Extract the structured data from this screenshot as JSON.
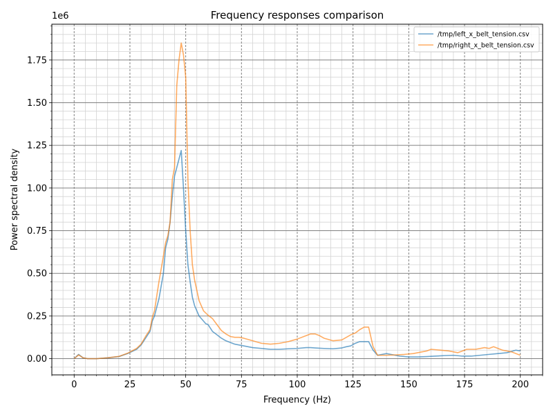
{
  "chart_data": {
    "type": "line",
    "title": "Frequency responses comparison",
    "xlabel": "Frequency (Hz)",
    "ylabel": "Power spectral density",
    "y_offset_label": "1e6",
    "xlim": [
      -10,
      210
    ],
    "ylim": [
      -0.095,
      1.96
    ],
    "x_ticks": [
      0,
      25,
      50,
      75,
      100,
      125,
      150,
      175,
      200
    ],
    "y_ticks": [
      0.0,
      0.25,
      0.5,
      0.75,
      1.0,
      1.25,
      1.5,
      1.75
    ],
    "y_tick_labels": [
      "0.00",
      "0.25",
      "0.50",
      "0.75",
      "1.00",
      "1.25",
      "1.50",
      "1.75"
    ],
    "grid": true,
    "legend_position": "top-right",
    "series": [
      {
        "name": "/tmp/left_x_belt_tension.csv",
        "color": "#1f77b4",
        "x": [
          0,
          2,
          4,
          6,
          10,
          15,
          20,
          24,
          28,
          30,
          32,
          34,
          35,
          36,
          38,
          40,
          41,
          42,
          43,
          44,
          45,
          46,
          47,
          48,
          49,
          50,
          51,
          52,
          53,
          54,
          56,
          58,
          59,
          60,
          62,
          64,
          66,
          68,
          70,
          72,
          74,
          76,
          80,
          84,
          88,
          92,
          96,
          100,
          104,
          106,
          108,
          112,
          116,
          120,
          122,
          124,
          126,
          128,
          130,
          132,
          134,
          136,
          138,
          140,
          142,
          144,
          146,
          150,
          154,
          158,
          162,
          166,
          170,
          174,
          178,
          182,
          186,
          190,
          194,
          198,
          200
        ],
        "y": [
          0.0,
          0.025,
          0.005,
          0.0,
          0.0,
          0.005,
          0.012,
          0.03,
          0.055,
          0.08,
          0.12,
          0.16,
          0.22,
          0.25,
          0.35,
          0.5,
          0.65,
          0.7,
          0.8,
          0.95,
          1.07,
          1.12,
          1.17,
          1.22,
          1.0,
          0.75,
          0.55,
          0.45,
          0.36,
          0.31,
          0.25,
          0.22,
          0.205,
          0.2,
          0.16,
          0.14,
          0.12,
          0.105,
          0.095,
          0.085,
          0.08,
          0.075,
          0.065,
          0.06,
          0.055,
          0.055,
          0.058,
          0.06,
          0.065,
          0.065,
          0.063,
          0.06,
          0.058,
          0.063,
          0.07,
          0.075,
          0.09,
          0.1,
          0.1,
          0.1,
          0.05,
          0.02,
          0.025,
          0.03,
          0.025,
          0.02,
          0.015,
          0.01,
          0.01,
          0.012,
          0.015,
          0.018,
          0.02,
          0.015,
          0.015,
          0.02,
          0.025,
          0.03,
          0.035,
          0.05,
          0.045
        ]
      },
      {
        "name": "/tmp/right_x_belt_tension.csv",
        "color": "#ff7f0e",
        "x": [
          0,
          2,
          4,
          6,
          10,
          15,
          20,
          24,
          28,
          30,
          32,
          34,
          35,
          36,
          38,
          40,
          41,
          42,
          43,
          44,
          45,
          46,
          47,
          48,
          49,
          50,
          51,
          52,
          53,
          54,
          56,
          58,
          60,
          62,
          64,
          66,
          68,
          70,
          72,
          74,
          76,
          80,
          84,
          88,
          92,
          96,
          100,
          104,
          106,
          108,
          110,
          112,
          116,
          120,
          124,
          126,
          128,
          130,
          132,
          134,
          136,
          140,
          144,
          148,
          152,
          156,
          158,
          160,
          164,
          168,
          172,
          174,
          176,
          180,
          184,
          186,
          188,
          192,
          196,
          200
        ],
        "y": [
          0.0,
          0.022,
          0.005,
          0.0,
          0.0,
          0.005,
          0.013,
          0.032,
          0.06,
          0.085,
          0.13,
          0.17,
          0.24,
          0.28,
          0.45,
          0.6,
          0.68,
          0.72,
          0.8,
          1.05,
          1.12,
          1.6,
          1.75,
          1.85,
          1.78,
          1.65,
          1.05,
          0.75,
          0.55,
          0.46,
          0.34,
          0.28,
          0.255,
          0.235,
          0.2,
          0.165,
          0.145,
          0.13,
          0.125,
          0.125,
          0.12,
          0.105,
          0.09,
          0.085,
          0.09,
          0.1,
          0.115,
          0.135,
          0.145,
          0.145,
          0.135,
          0.12,
          0.105,
          0.11,
          0.14,
          0.15,
          0.17,
          0.185,
          0.185,
          0.07,
          0.02,
          0.02,
          0.022,
          0.025,
          0.03,
          0.04,
          0.045,
          0.055,
          0.05,
          0.045,
          0.035,
          0.045,
          0.055,
          0.055,
          0.065,
          0.06,
          0.07,
          0.05,
          0.04,
          0.02
        ]
      }
    ]
  }
}
